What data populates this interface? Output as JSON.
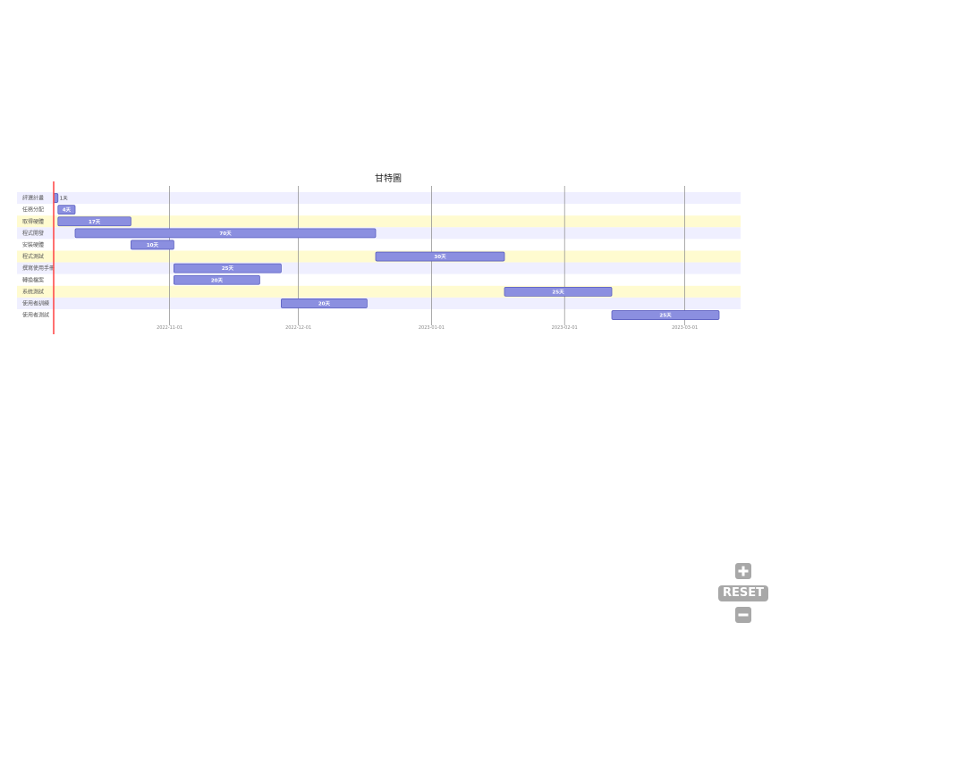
{
  "chart_data": {
    "type": "gantt",
    "title": "甘特圖",
    "x_tick_labels": [
      "2022-11-01",
      "2022-12-01",
      "2023-01-01",
      "2023-02-01",
      "2023-03-01"
    ],
    "x_ticks": [
      "2022-11-01",
      "2022-12-01",
      "2023-01-01",
      "2023-02-01",
      "2023-03-01"
    ],
    "x_range": [
      "2022-10-05",
      "2023-03-14"
    ],
    "today_marker": "2022-10-05",
    "row_band_colors": [
      "#efefff",
      "#ffffff",
      "#fffbd0"
    ],
    "bar_color": "#8b8fe0",
    "bar_border": "#5b5fc0",
    "tasks": [
      {
        "name": "評選計畫",
        "start": "2022-10-05",
        "end": "2022-10-06",
        "label": "1天"
      },
      {
        "name": "任務分配",
        "start": "2022-10-06",
        "end": "2022-10-10",
        "label": "4天"
      },
      {
        "name": "取得硬體",
        "start": "2022-10-06",
        "end": "2022-10-23",
        "label": "17天"
      },
      {
        "name": "程式開發",
        "start": "2022-10-10",
        "end": "2022-12-19",
        "label": "70天"
      },
      {
        "name": "安裝硬體",
        "start": "2022-10-23",
        "end": "2022-11-02",
        "label": "10天"
      },
      {
        "name": "程式測試",
        "start": "2022-12-19",
        "end": "2023-01-18",
        "label": "30天"
      },
      {
        "name": "撰寫使用手冊",
        "start": "2022-11-02",
        "end": "2022-11-27",
        "label": "25天"
      },
      {
        "name": "轉換檔案",
        "start": "2022-11-02",
        "end": "2022-11-22",
        "label": "20天"
      },
      {
        "name": "系統測試",
        "start": "2023-01-18",
        "end": "2023-02-12",
        "label": "25天"
      },
      {
        "name": "使用者訓練",
        "start": "2022-11-27",
        "end": "2022-12-17",
        "label": "20天"
      },
      {
        "name": "使用者測試",
        "start": "2023-02-12",
        "end": "2023-03-09",
        "label": "25天"
      }
    ]
  },
  "controls": {
    "zoom_in_icon": "plus-square-icon",
    "reset_label": "RESET",
    "zoom_out_icon": "minus-square-icon",
    "control_color": "#a8a8a8"
  }
}
